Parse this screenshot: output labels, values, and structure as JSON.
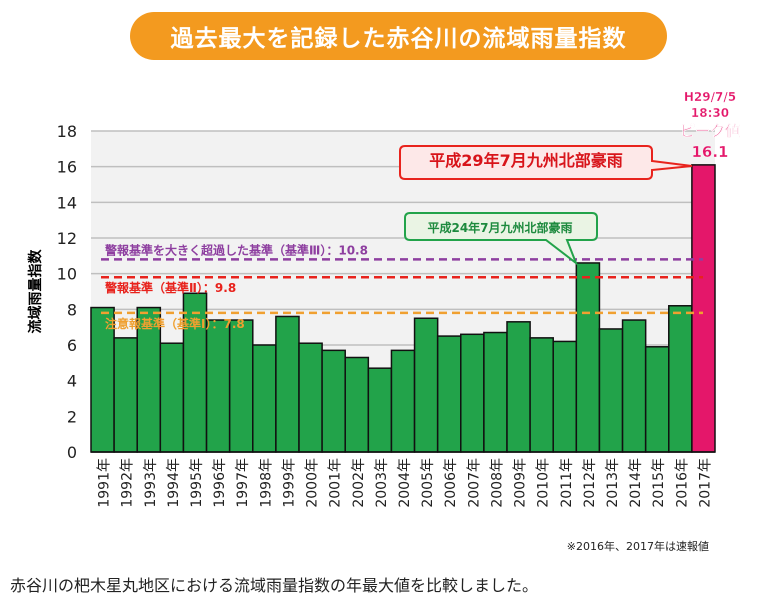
{
  "title": "過去最大を記録した赤谷川の流域雨量指数",
  "chart_data": {
    "type": "bar",
    "ylabel": "流域雨量指数",
    "ylim": [
      0,
      18
    ],
    "yticks": [
      0,
      2,
      4,
      6,
      8,
      10,
      12,
      14,
      16,
      18
    ],
    "grid": true,
    "categories": [
      "1991年",
      "1992年",
      "1993年",
      "1994年",
      "1995年",
      "1996年",
      "1997年",
      "1998年",
      "1999年",
      "2000年",
      "2001年",
      "2002年",
      "2003年",
      "2004年",
      "2005年",
      "2006年",
      "2007年",
      "2008年",
      "2009年",
      "2010年",
      "2011年",
      "2012年",
      "2013年",
      "2014年",
      "2015年",
      "2016年",
      "2017年"
    ],
    "values": [
      8.1,
      6.4,
      8.1,
      6.1,
      8.9,
      7.4,
      7.4,
      6.0,
      7.6,
      6.1,
      5.7,
      5.3,
      4.7,
      5.7,
      7.5,
      6.5,
      6.6,
      6.7,
      7.3,
      6.4,
      6.2,
      10.6,
      6.9,
      7.4,
      5.9,
      8.2,
      16.1
    ],
    "bar_color": "#22a34a",
    "highlight_color": "#e4176a",
    "thresholds": [
      {
        "label": "警報基準を大きく超過した基準（基準Ⅲ）：10.8",
        "value": 10.8,
        "color": "#8e3fa0"
      },
      {
        "label": "警報基準（基準Ⅱ）：9.8",
        "value": 9.8,
        "color": "#e8231d"
      },
      {
        "label": "注意報基準（基準Ⅰ）：7.8",
        "value": 7.8,
        "color": "#f0a030"
      }
    ],
    "annotations": {
      "peak_lines": [
        "H29/7/5",
        "18:30",
        "ピーク値",
        "16.1"
      ],
      "callout_2017": "平成29年7月九州北部豪雨",
      "callout_2012": "平成24年7月九州北部豪雨"
    }
  },
  "footnote": "※2016年、2017年は速報値",
  "caption": "赤谷川の杷木星丸地区における流域雨量指数の年最大値を比較しました。"
}
